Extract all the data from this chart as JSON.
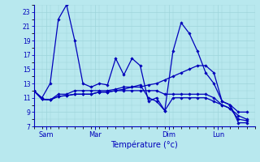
{
  "background_color": "#b8e8ee",
  "grid_color": "#9ed4da",
  "line_color": "#0000bb",
  "xlabel": "Température (°c)",
  "ylim": [
    7,
    24
  ],
  "yticks": [
    7,
    9,
    11,
    13,
    15,
    17,
    19,
    21,
    23
  ],
  "xlim": [
    0,
    27
  ],
  "xtick_positions": [
    1.5,
    7.5,
    16.5,
    22.5
  ],
  "xtick_labels": [
    "Sam",
    "Mar",
    "Dim",
    "Lun"
  ],
  "series": [
    [
      12.0,
      11.0,
      13.0,
      22.0,
      24.0,
      19.0,
      13.0,
      12.5,
      13.0,
      12.8,
      16.5,
      14.2,
      16.5,
      15.5,
      10.5,
      11.0,
      9.2,
      17.5,
      21.5,
      20.0,
      17.5,
      14.5,
      13.0,
      10.5,
      10.0,
      7.5,
      7.5
    ],
    [
      12.0,
      10.8,
      10.7,
      11.5,
      11.5,
      12.0,
      12.0,
      12.0,
      12.0,
      12.0,
      12.2,
      12.5,
      12.5,
      12.5,
      12.8,
      13.0,
      13.5,
      14.0,
      14.5,
      15.0,
      15.5,
      15.5,
      14.5,
      10.5,
      10.0,
      9.0,
      9.0
    ],
    [
      12.0,
      10.8,
      10.7,
      11.2,
      11.3,
      11.5,
      11.5,
      11.5,
      11.8,
      11.8,
      12.0,
      12.0,
      12.0,
      12.0,
      12.0,
      12.0,
      11.5,
      11.5,
      11.5,
      11.5,
      11.5,
      11.5,
      11.0,
      10.0,
      9.5,
      8.5,
      8.0
    ],
    [
      12.0,
      10.8,
      10.7,
      11.2,
      11.3,
      11.5,
      11.5,
      11.5,
      11.8,
      11.8,
      12.0,
      12.2,
      12.5,
      12.8,
      11.0,
      10.5,
      9.2,
      11.0,
      11.0,
      11.0,
      11.0,
      11.0,
      10.5,
      10.0,
      9.5,
      8.0,
      7.8
    ]
  ],
  "ylabel_fontsize": 5.5,
  "xlabel_fontsize": 7.0,
  "tick_fontsize": 6.0
}
